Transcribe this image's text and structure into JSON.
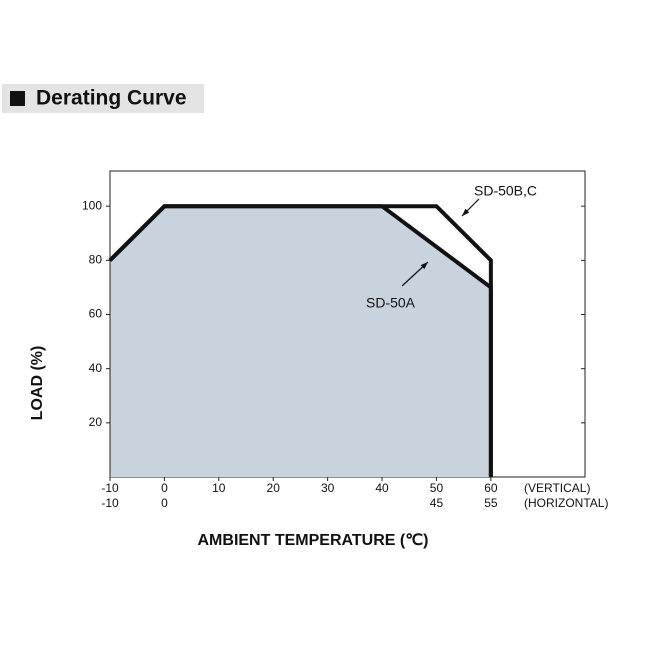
{
  "chart_data": {
    "type": "line",
    "title": "Derating Curve",
    "xlabel": "AMBIENT TEMPERATURE (℃)",
    "ylabel": "LOAD (%)",
    "xlim": [
      -10,
      77.3
    ],
    "ylim": [
      0,
      113
    ],
    "xticks": [
      -10,
      0,
      10,
      20,
      30,
      40,
      50,
      60
    ],
    "x_note": "(VERTICAL)",
    "x2ticks": [
      -10,
      0,
      45,
      55
    ],
    "x2tick_positions": [
      -10,
      0,
      50,
      60
    ],
    "x2_note": "(HORIZONTAL)",
    "yticks": [
      20,
      40,
      60,
      80,
      100
    ],
    "series": [
      {
        "name": "SD-50B,C",
        "color": "#111111",
        "x": [
          -10,
          0,
          50,
          60,
          60
        ],
        "values": [
          80,
          100,
          100,
          80,
          0
        ]
      },
      {
        "name": "SD-50A",
        "color": "#111111",
        "area_color": "#c9d3de",
        "x": [
          -10,
          0,
          40,
          60,
          60
        ],
        "values": [
          80,
          100,
          100,
          70,
          0
        ]
      }
    ]
  }
}
